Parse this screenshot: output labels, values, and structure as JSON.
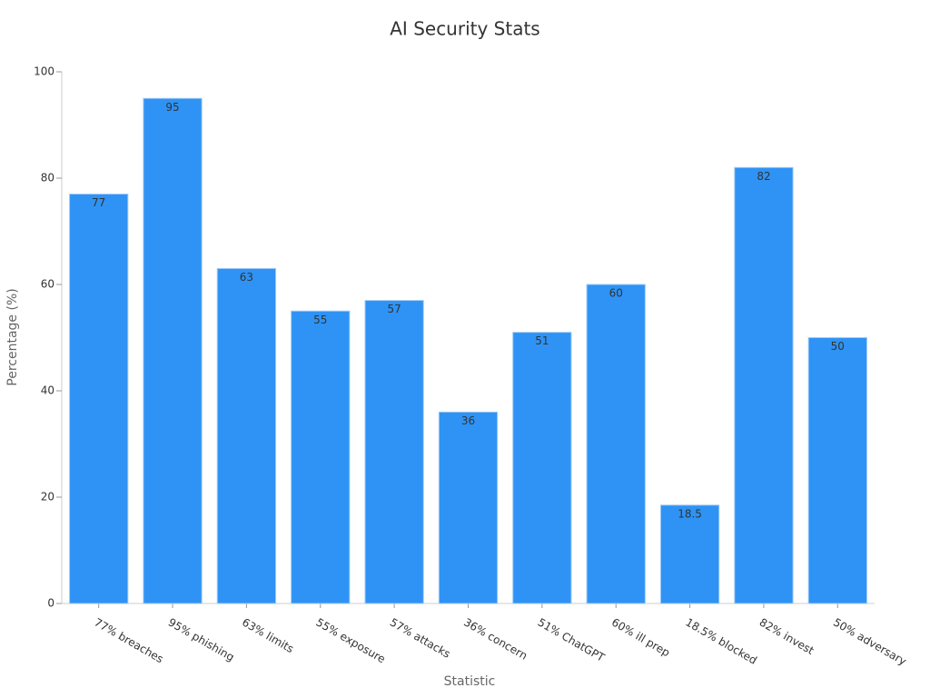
{
  "chart_data": {
    "type": "bar",
    "title": "AI Security Stats",
    "x_label": "Statistic",
    "y_label": "Percentage (%)",
    "categories": [
      "77% breaches",
      "95% phishing",
      "63% limits",
      "55% exposure",
      "57% attacks",
      "36% concern",
      "51% ChatGPT",
      "60% ill prep",
      "18.5% blocked",
      "82% invest",
      "50% adversary"
    ],
    "values": [
      77,
      95,
      63,
      55,
      57,
      36,
      51,
      60,
      18.5,
      82,
      50
    ],
    "color": "#2e93f5",
    "ylim": [
      0,
      100
    ],
    "yticks": [
      0,
      20,
      40,
      60,
      80,
      100
    ],
    "grid": false
  }
}
